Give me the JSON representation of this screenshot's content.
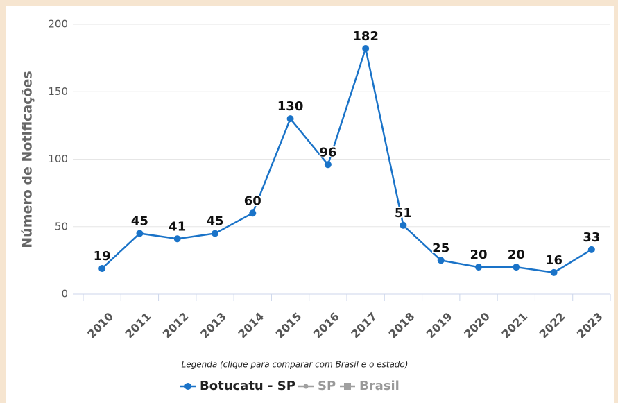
{
  "chart_data": {
    "type": "line",
    "y_axis_label": "Número de Notificações",
    "categories": [
      "2010",
      "2011",
      "2012",
      "2013",
      "2014",
      "2015",
      "2016",
      "2017",
      "2018",
      "2019",
      "2020",
      "2021",
      "2022",
      "2023"
    ],
    "series": [
      {
        "name": "Botucatu - SP",
        "color": "#1a73c8",
        "values": [
          19,
          45,
          41,
          45,
          60,
          130,
          96,
          182,
          51,
          25,
          20,
          20,
          16,
          33
        ]
      },
      {
        "name": "SP",
        "color": "#a0a0a0",
        "hidden": true
      },
      {
        "name": "Brasil",
        "color": "#a0a0a0",
        "hidden": true
      }
    ],
    "ylim": [
      0,
      200
    ],
    "yticks": [
      0,
      50,
      100,
      150,
      200
    ],
    "grid": true,
    "legend_title": "Legenda (clique para comparar com Brasil e o estado)",
    "legend_position": "bottom"
  }
}
